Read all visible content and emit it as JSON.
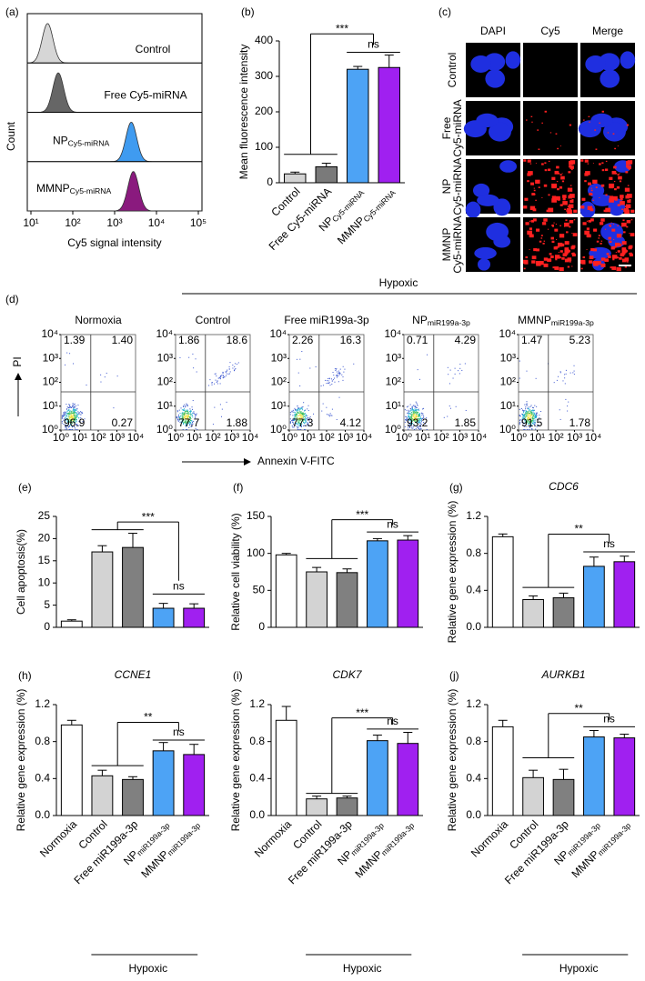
{
  "chart_data": [
    {
      "type": "histstack",
      "label": "(a)",
      "xlabel": "Cy5 signal intensity",
      "ylabel": "Count",
      "log_x": true,
      "xlim": [
        10,
        100000
      ],
      "xticks": [
        {
          "value": 10,
          "label": "10¹"
        },
        {
          "value": 100,
          "label": "10²"
        },
        {
          "value": 1000,
          "label": "10³"
        },
        {
          "value": 10000,
          "label": "10⁴"
        },
        {
          "value": 100000,
          "label": "10⁵"
        }
      ],
      "series": [
        {
          "name": "Control",
          "color": "#d6d6d6",
          "peak": 25
        },
        {
          "name": "Free Cy5-miRNA",
          "color": "#666666",
          "peak": 45
        },
        {
          "name": {
            "text": "NP",
            "sub": "Cy5-miRNA"
          },
          "color": "#3f9bf0",
          "peak": 2500
        },
        {
          "name": {
            "text": "MMNP",
            "sub": "Cy5-miRNA"
          },
          "color": "#8a1a7e",
          "peak": 2800
        }
      ]
    },
    {
      "type": "bar",
      "label": "(b)",
      "ylabel": "Mean fluorescence intensity",
      "categories": [
        "Control",
        "Free Cy5-miRNA",
        {
          "text": "NP",
          "sub": "Cy5-miRNA"
        },
        {
          "text": "MMNP",
          "sub": "Cy5-miRNA"
        }
      ],
      "values": [
        25,
        45,
        320,
        325
      ],
      "errors": [
        5,
        10,
        8,
        35
      ],
      "colors": [
        "#d3d3d3",
        "#7a7a7a",
        "#4da3f5",
        "#a020f0"
      ],
      "ylim": [
        0,
        400
      ],
      "yticks": [
        0,
        100,
        200,
        300,
        400
      ],
      "annotations": [
        "***",
        "ns"
      ]
    },
    {
      "type": "image",
      "label": "(c)",
      "columns": [
        "DAPI",
        "Cy5",
        "Merge"
      ],
      "rows": [
        [
          "Control"
        ],
        [
          "Free",
          "Cy5-miRNA"
        ],
        [
          "NP",
          "Cy5-miRNA"
        ],
        [
          "MMNP",
          "Cy5-miRNA"
        ]
      ]
    },
    {
      "type": "flow",
      "label": "(d)",
      "group_label": "Hypoxic",
      "xlabel": "Annexin V-FITC",
      "ylabel": "PI",
      "xlim": [
        1,
        10000
      ],
      "ylim": [
        1,
        10000
      ],
      "xticks": [
        {
          "value": 1,
          "label": "10⁰"
        },
        {
          "value": 10,
          "label": "10¹"
        },
        {
          "value": 100,
          "label": "10²"
        },
        {
          "value": 1000,
          "label": "10³"
        },
        {
          "value": 10000,
          "label": "10⁴"
        }
      ],
      "yticks": [
        {
          "value": 1,
          "label": "10⁰"
        },
        {
          "value": 10,
          "label": "10¹"
        },
        {
          "value": 100,
          "label": "10²"
        },
        {
          "value": 1000,
          "label": "10³"
        },
        {
          "value": 10000,
          "label": "10⁴"
        }
      ],
      "plots": [
        {
          "title": "Normoxia",
          "values": [
            1.39,
            1.4,
            96.9,
            0.27
          ],
          "value_labels": [
            "1.39",
            "1.40",
            "96.9",
            "0.27"
          ]
        },
        {
          "title": "Control",
          "values": [
            1.86,
            18.6,
            77.7,
            1.88
          ],
          "value_labels": [
            "1.86",
            "18.6",
            "77.7",
            "1.88"
          ]
        },
        {
          "title": "Free miR199a-3p",
          "values": [
            2.26,
            16.3,
            77.3,
            4.12
          ],
          "value_labels": [
            "2.26",
            "16.3",
            "77.3",
            "4.12"
          ]
        },
        {
          "title": {
            "text": "NP",
            "sub": "miR199a-3p"
          },
          "values": [
            0.71,
            4.29,
            93.2,
            1.85
          ],
          "value_labels": [
            "0.71",
            "4.29",
            "93.2",
            "1.85"
          ]
        },
        {
          "title": {
            "text": "MMNP",
            "sub": "miR199a-3p"
          },
          "values": [
            1.47,
            5.23,
            91.5,
            1.78
          ],
          "value_labels": [
            "1.47",
            "5.23",
            "91.5",
            "1.78"
          ]
        }
      ]
    },
    {
      "type": "bar",
      "label": "(e)",
      "ylabel": "Cell apoptosis(%)",
      "categories": [
        null,
        null,
        null,
        null,
        null
      ],
      "values": [
        1.4,
        17,
        18,
        4.3,
        4.3
      ],
      "errors": [
        0.3,
        1.4,
        3.2,
        1.1,
        1.0
      ],
      "colors": [
        "#ffffff",
        "#d3d3d3",
        "#808080",
        "#4da3f5",
        "#a020f0"
      ],
      "ylim": [
        0,
        25
      ],
      "yticks": [
        0,
        5,
        10,
        15,
        20,
        25
      ],
      "annotations": [
        "***",
        "ns"
      ]
    },
    {
      "type": "bar",
      "label": "(f)",
      "ylabel": "Relative cell viability (%)",
      "categories": [
        null,
        null,
        null,
        null,
        null
      ],
      "values": [
        98,
        75,
        74,
        117,
        118
      ],
      "errors": [
        2,
        6,
        5,
        3,
        6
      ],
      "colors": [
        "#ffffff",
        "#d3d3d3",
        "#808080",
        "#4da3f5",
        "#a020f0"
      ],
      "ylim": [
        0,
        150
      ],
      "yticks": [
        0,
        50,
        100,
        150
      ],
      "annotations": [
        "***",
        "ns"
      ]
    },
    {
      "type": "bar",
      "label": "(g)",
      "title": "CDC6",
      "ylabel": "Relative gene expression (%)",
      "categories": [
        null,
        null,
        null,
        null,
        null
      ],
      "values": [
        0.98,
        0.3,
        0.32,
        0.66,
        0.71
      ],
      "errors": [
        0.03,
        0.04,
        0.05,
        0.1,
        0.06
      ],
      "colors": [
        "#ffffff",
        "#d3d3d3",
        "#808080",
        "#4da3f5",
        "#a020f0"
      ],
      "ylim": [
        0,
        1.2
      ],
      "yticks": [
        {
          "value": 0,
          "label": "0.0"
        },
        0.4,
        0.8,
        1.2
      ],
      "annotations": [
        "**",
        "ns"
      ]
    },
    {
      "type": "bar",
      "label": "(h)",
      "title": "CCNE1",
      "ylabel": "Relative gene expression (%)",
      "categories": [
        "Normoxia",
        "Control",
        "Free miR199a-3p",
        {
          "text": "NP",
          "sub": "miR199a-3p"
        },
        {
          "text": "MMNP",
          "sub": "miR199a-3p"
        }
      ],
      "values": [
        0.98,
        0.43,
        0.39,
        0.7,
        0.66
      ],
      "errors": [
        0.05,
        0.06,
        0.03,
        0.09,
        0.11
      ],
      "colors": [
        "#ffffff",
        "#d3d3d3",
        "#808080",
        "#4da3f5",
        "#a020f0"
      ],
      "ylim": [
        0,
        1.2
      ],
      "yticks": [
        {
          "value": 0,
          "label": "0.0"
        },
        0.4,
        0.8,
        1.2
      ],
      "annotations": [
        "**",
        "ns"
      ],
      "group_label": "Hypoxic"
    },
    {
      "type": "bar",
      "label": "(i)",
      "title": "CDK7",
      "ylabel": "Relative gene expression (%)",
      "categories": [
        "Normoxia",
        "Control",
        "Free miR199a-3p",
        {
          "text": "NP",
          "sub": "miR199a-3p"
        },
        {
          "text": "MMNP",
          "sub": "miR199a-3p"
        }
      ],
      "values": [
        1.03,
        0.18,
        0.19,
        0.81,
        0.78
      ],
      "errors": [
        0.15,
        0.03,
        0.02,
        0.06,
        0.12
      ],
      "colors": [
        "#ffffff",
        "#d3d3d3",
        "#808080",
        "#4da3f5",
        "#a020f0"
      ],
      "ylim": [
        0,
        1.2
      ],
      "yticks": [
        {
          "value": 0,
          "label": "0.0"
        },
        0.4,
        0.8,
        1.2
      ],
      "annotations": [
        "***",
        "ns"
      ],
      "group_label": "Hypoxic"
    },
    {
      "type": "bar",
      "label": "(j)",
      "title": "AURKB1",
      "ylabel": "Relative gene expression (%)",
      "categories": [
        "Normoxia",
        "Control",
        "Free miR199a-3p",
        {
          "text": "NP",
          "sub": "miR199a-3p"
        },
        {
          "text": "MMNP",
          "sub": "miR199a-3p"
        }
      ],
      "values": [
        0.96,
        0.41,
        0.39,
        0.85,
        0.84
      ],
      "errors": [
        0.07,
        0.08,
        0.11,
        0.07,
        0.04
      ],
      "colors": [
        "#ffffff",
        "#d3d3d3",
        "#808080",
        "#4da3f5",
        "#a020f0"
      ],
      "ylim": [
        0,
        1.2
      ],
      "yticks": [
        {
          "value": 0,
          "label": "0.0"
        },
        0.4,
        0.8,
        1.2
      ],
      "annotations": [
        "**",
        "ns"
      ],
      "group_label": "Hypoxic"
    }
  ]
}
